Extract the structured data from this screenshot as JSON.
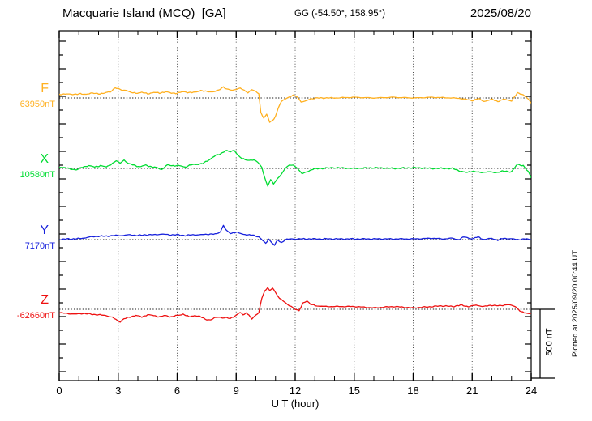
{
  "header": {
    "station_title": "Macquarie Island (MCQ)  [GA]",
    "coords": "GG (-54.50°, 158.95°)",
    "date": "2025/08/20"
  },
  "xaxis": {
    "label": "U T (hour)",
    "major_ticks": [
      0,
      3,
      6,
      9,
      12,
      15,
      18,
      21,
      24
    ],
    "minor_step_hours": 1,
    "range_hours": [
      0,
      24
    ]
  },
  "scale_bar": {
    "label": "500 nT",
    "span_nT": 500
  },
  "footer_note": "Plotted at 2025/09/20 00:44 UT",
  "chart_data": {
    "type": "line",
    "title": "Macquarie Island (MCQ) [GA] magnetogram, 2025/08/20",
    "xlabel": "U T (hour)",
    "xlim": [
      0,
      24
    ],
    "x_major_ticks": [
      0,
      3,
      6,
      9,
      12,
      15,
      18,
      21,
      24
    ],
    "grid": "dotted vertical lines every 3 h; dotted horizontal baseline for each component",
    "legend_position": "left margin, one colored label per trace",
    "amplitude_scale": {
      "bar_label": "500 nT",
      "bar_nT": 500
    },
    "note": "points are [hour_UT, offset_nT]; offset_nT is deviation from base_nT; the dotted baseline of each trace equals its base value",
    "series": [
      {
        "name": "F",
        "label": "F",
        "base_label": "63950nT",
        "base_nT": 63950,
        "color": "#FFB020",
        "points": [
          [
            0,
            25
          ],
          [
            0.3,
            30
          ],
          [
            0.6,
            25
          ],
          [
            1,
            30
          ],
          [
            1.3,
            25
          ],
          [
            1.6,
            35
          ],
          [
            2,
            30
          ],
          [
            2.3,
            35
          ],
          [
            2.6,
            45
          ],
          [
            2.85,
            75
          ],
          [
            3,
            65
          ],
          [
            3.2,
            55
          ],
          [
            3.4,
            60
          ],
          [
            3.6,
            40
          ],
          [
            3.9,
            35
          ],
          [
            4.2,
            40
          ],
          [
            4.5,
            30
          ],
          [
            4.8,
            40
          ],
          [
            5.1,
            35
          ],
          [
            5.4,
            45
          ],
          [
            5.7,
            35
          ],
          [
            6,
            35
          ],
          [
            6.3,
            45
          ],
          [
            6.6,
            40
          ],
          [
            6.9,
            40
          ],
          [
            7.2,
            55
          ],
          [
            7.5,
            45
          ],
          [
            7.8,
            45
          ],
          [
            8.1,
            55
          ],
          [
            8.35,
            80
          ],
          [
            8.6,
            60
          ],
          [
            8.8,
            55
          ],
          [
            9,
            65
          ],
          [
            9.2,
            70
          ],
          [
            9.4,
            55
          ],
          [
            9.6,
            40
          ],
          [
            9.8,
            60
          ],
          [
            10,
            45
          ],
          [
            10.15,
            30
          ],
          [
            10.25,
            -105
          ],
          [
            10.4,
            -145
          ],
          [
            10.55,
            -120
          ],
          [
            10.7,
            -175
          ],
          [
            10.85,
            -165
          ],
          [
            11,
            -130
          ],
          [
            11.15,
            -70
          ],
          [
            11.3,
            -25
          ],
          [
            11.5,
            -5
          ],
          [
            11.7,
            5
          ],
          [
            11.9,
            20
          ],
          [
            12.1,
            10
          ],
          [
            12.3,
            -30
          ],
          [
            12.5,
            -25
          ],
          [
            12.8,
            -5
          ],
          [
            13.2,
            0
          ],
          [
            14,
            0
          ],
          [
            15,
            5
          ],
          [
            16,
            0
          ],
          [
            17,
            5
          ],
          [
            18,
            0
          ],
          [
            19,
            5
          ],
          [
            20,
            0
          ],
          [
            20.5,
            -5
          ],
          [
            21,
            -20
          ],
          [
            21.3,
            -5
          ],
          [
            21.6,
            -25
          ],
          [
            22,
            -10
          ],
          [
            22.3,
            -25
          ],
          [
            22.6,
            -10
          ],
          [
            23,
            -20
          ],
          [
            23.3,
            35
          ],
          [
            23.6,
            25
          ],
          [
            23.8,
            0
          ],
          [
            24,
            -40
          ]
        ]
      },
      {
        "name": "X",
        "label": "X",
        "base_label": "10580nT",
        "base_nT": 10580,
        "color": "#00DC32",
        "points": [
          [
            0,
            10
          ],
          [
            0.3,
            5
          ],
          [
            0.6,
            -5
          ],
          [
            0.9,
            -10
          ],
          [
            1.2,
            10
          ],
          [
            1.5,
            20
          ],
          [
            1.8,
            10
          ],
          [
            2.1,
            20
          ],
          [
            2.4,
            10
          ],
          [
            2.7,
            35
          ],
          [
            2.9,
            55
          ],
          [
            3.1,
            40
          ],
          [
            3.3,
            60
          ],
          [
            3.5,
            35
          ],
          [
            3.8,
            25
          ],
          [
            4.1,
            10
          ],
          [
            4.4,
            25
          ],
          [
            4.7,
            10
          ],
          [
            5,
            5
          ],
          [
            5.2,
            -10
          ],
          [
            5.5,
            25
          ],
          [
            5.8,
            20
          ],
          [
            6.1,
            20
          ],
          [
            6.4,
            10
          ],
          [
            6.7,
            25
          ],
          [
            7,
            30
          ],
          [
            7.3,
            35
          ],
          [
            7.6,
            60
          ],
          [
            7.9,
            90
          ],
          [
            8.2,
            105
          ],
          [
            8.45,
            130
          ],
          [
            8.7,
            120
          ],
          [
            8.9,
            130
          ],
          [
            9.1,
            95
          ],
          [
            9.3,
            70
          ],
          [
            9.6,
            60
          ],
          [
            9.9,
            60
          ],
          [
            10.1,
            45
          ],
          [
            10.3,
            10
          ],
          [
            10.45,
            -70
          ],
          [
            10.6,
            -130
          ],
          [
            10.75,
            -80
          ],
          [
            10.9,
            -110
          ],
          [
            11.1,
            -75
          ],
          [
            11.3,
            -45
          ],
          [
            11.5,
            5
          ],
          [
            11.7,
            25
          ],
          [
            11.9,
            20
          ],
          [
            12.1,
            5
          ],
          [
            12.35,
            -40
          ],
          [
            12.6,
            -25
          ],
          [
            12.9,
            -5
          ],
          [
            13.3,
            0
          ],
          [
            14,
            5
          ],
          [
            15,
            0
          ],
          [
            16,
            5
          ],
          [
            17,
            0
          ],
          [
            18,
            5
          ],
          [
            19,
            0
          ],
          [
            20,
            0
          ],
          [
            20.4,
            -20
          ],
          [
            20.7,
            -30
          ],
          [
            21,
            -20
          ],
          [
            21.4,
            -30
          ],
          [
            21.8,
            -25
          ],
          [
            22.2,
            -30
          ],
          [
            22.6,
            -20
          ],
          [
            23,
            -25
          ],
          [
            23.3,
            30
          ],
          [
            23.6,
            20
          ],
          [
            23.85,
            -25
          ],
          [
            24,
            -65
          ]
        ]
      },
      {
        "name": "Y",
        "label": "Y",
        "base_label": "7170nT",
        "base_nT": 7170,
        "color": "#1822DC",
        "points": [
          [
            0,
            0
          ],
          [
            0.4,
            5
          ],
          [
            0.8,
            5
          ],
          [
            1.2,
            10
          ],
          [
            1.6,
            20
          ],
          [
            2,
            25
          ],
          [
            2.4,
            25
          ],
          [
            2.8,
            30
          ],
          [
            3.2,
            30
          ],
          [
            3.6,
            35
          ],
          [
            4,
            30
          ],
          [
            4.4,
            35
          ],
          [
            4.8,
            35
          ],
          [
            5.2,
            40
          ],
          [
            5.6,
            35
          ],
          [
            6,
            35
          ],
          [
            6.4,
            30
          ],
          [
            6.8,
            35
          ],
          [
            7.2,
            35
          ],
          [
            7.6,
            40
          ],
          [
            8,
            40
          ],
          [
            8.2,
            60
          ],
          [
            8.35,
            105
          ],
          [
            8.5,
            65
          ],
          [
            8.7,
            45
          ],
          [
            9,
            55
          ],
          [
            9.3,
            40
          ],
          [
            9.6,
            35
          ],
          [
            9.9,
            30
          ],
          [
            10.15,
            20
          ],
          [
            10.35,
            -5
          ],
          [
            10.5,
            -30
          ],
          [
            10.65,
            5
          ],
          [
            10.8,
            -20
          ],
          [
            10.95,
            -40
          ],
          [
            11.1,
            -5
          ],
          [
            11.3,
            -20
          ],
          [
            11.5,
            0
          ],
          [
            11.8,
            5
          ],
          [
            12.2,
            5
          ],
          [
            12.6,
            5
          ],
          [
            13,
            5
          ],
          [
            14,
            5
          ],
          [
            15,
            5
          ],
          [
            16,
            5
          ],
          [
            17,
            5
          ],
          [
            18,
            5
          ],
          [
            19,
            10
          ],
          [
            19.5,
            5
          ],
          [
            20,
            10
          ],
          [
            20.3,
            0
          ],
          [
            20.6,
            20
          ],
          [
            21,
            5
          ],
          [
            21.3,
            20
          ],
          [
            21.6,
            0
          ],
          [
            22,
            10
          ],
          [
            22.3,
            -5
          ],
          [
            22.6,
            10
          ],
          [
            23,
            5
          ],
          [
            23.4,
            0
          ],
          [
            23.7,
            5
          ],
          [
            24,
            0
          ]
        ]
      },
      {
        "name": "Z",
        "label": "Z",
        "base_label": "-62660nT",
        "base_nT": -62660,
        "color": "#EE1111",
        "points": [
          [
            0,
            -25
          ],
          [
            0.4,
            -30
          ],
          [
            0.8,
            -35
          ],
          [
            1.2,
            -30
          ],
          [
            1.6,
            -35
          ],
          [
            2,
            -40
          ],
          [
            2.4,
            -45
          ],
          [
            2.7,
            -60
          ],
          [
            2.9,
            -75
          ],
          [
            3.1,
            -90
          ],
          [
            3.3,
            -70
          ],
          [
            3.6,
            -55
          ],
          [
            3.9,
            -45
          ],
          [
            4.2,
            -55
          ],
          [
            4.5,
            -40
          ],
          [
            4.8,
            -45
          ],
          [
            5.1,
            -55
          ],
          [
            5.4,
            -45
          ],
          [
            5.7,
            -55
          ],
          [
            6,
            -45
          ],
          [
            6.3,
            -35
          ],
          [
            6.6,
            -55
          ],
          [
            6.9,
            -45
          ],
          [
            7.2,
            -55
          ],
          [
            7.5,
            -75
          ],
          [
            7.7,
            -80
          ],
          [
            7.9,
            -60
          ],
          [
            8.1,
            -55
          ],
          [
            8.3,
            -65
          ],
          [
            8.5,
            -60
          ],
          [
            8.7,
            -65
          ],
          [
            9,
            -45
          ],
          [
            9.2,
            -20
          ],
          [
            9.35,
            -40
          ],
          [
            9.5,
            -25
          ],
          [
            9.65,
            -45
          ],
          [
            9.8,
            -70
          ],
          [
            10,
            -40
          ],
          [
            10.15,
            -25
          ],
          [
            10.3,
            80
          ],
          [
            10.45,
            130
          ],
          [
            10.6,
            160
          ],
          [
            10.7,
            135
          ],
          [
            10.85,
            155
          ],
          [
            11,
            120
          ],
          [
            11.2,
            80
          ],
          [
            11.4,
            60
          ],
          [
            11.6,
            35
          ],
          [
            11.8,
            20
          ],
          [
            12,
            0
          ],
          [
            12.2,
            -10
          ],
          [
            12.4,
            45
          ],
          [
            12.6,
            60
          ],
          [
            12.8,
            35
          ],
          [
            13.1,
            25
          ],
          [
            13.5,
            20
          ],
          [
            14,
            20
          ],
          [
            15,
            20
          ],
          [
            16,
            10
          ],
          [
            17,
            20
          ],
          [
            18,
            10
          ],
          [
            19,
            20
          ],
          [
            19.5,
            25
          ],
          [
            20,
            20
          ],
          [
            20.4,
            30
          ],
          [
            20.8,
            20
          ],
          [
            21.2,
            30
          ],
          [
            21.6,
            20
          ],
          [
            22,
            30
          ],
          [
            22.4,
            25
          ],
          [
            22.8,
            35
          ],
          [
            23.2,
            20
          ],
          [
            23.5,
            -20
          ],
          [
            23.8,
            -30
          ],
          [
            24,
            -25
          ]
        ]
      }
    ]
  }
}
